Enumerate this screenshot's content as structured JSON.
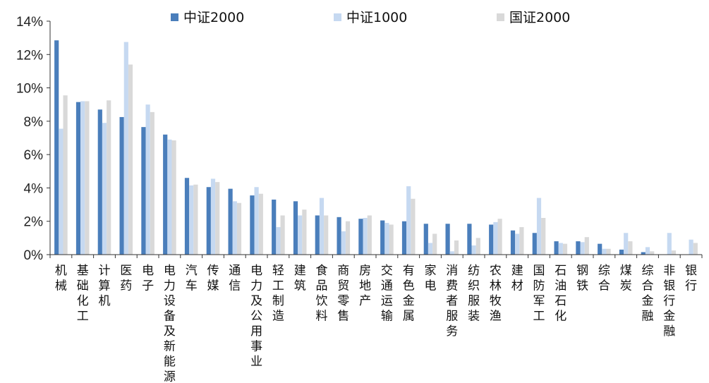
{
  "chart_data": {
    "type": "bar",
    "categories": [
      "机械",
      "基础化工",
      "计算机",
      "医药",
      "电子",
      "电力设备及新能源",
      "汽车",
      "传媒",
      "通信",
      "电力及公用事业",
      "轻工制造",
      "建筑",
      "食品饮料",
      "商贸零售",
      "房地产",
      "交通运输",
      "有色金属",
      "家电",
      "消费者服务",
      "纺织服装",
      "农林牧渔",
      "建材",
      "国防军工",
      "石油石化",
      "钢铁",
      "综合",
      "煤炭",
      "综合金融",
      "非银行金融",
      "银行"
    ],
    "series": [
      {
        "name": "中证2000",
        "color": "#4a7ebb",
        "values": [
          12.85,
          9.15,
          8.7,
          8.25,
          7.65,
          7.2,
          4.6,
          4.05,
          3.95,
          3.55,
          3.3,
          3.2,
          2.35,
          2.25,
          2.15,
          2.05,
          2.0,
          1.85,
          1.85,
          1.85,
          1.8,
          1.45,
          1.3,
          0.8,
          0.8,
          0.65,
          0.3,
          0.15,
          0.0,
          0.0
        ]
      },
      {
        "name": "中证1000",
        "color": "#c6d9f1",
        "values": [
          7.55,
          9.2,
          7.9,
          12.75,
          9.0,
          6.9,
          4.15,
          4.55,
          3.2,
          4.05,
          1.65,
          2.35,
          3.4,
          1.4,
          2.2,
          1.9,
          4.1,
          0.7,
          0.2,
          0.55,
          1.95,
          1.25,
          3.4,
          0.7,
          0.75,
          0.35,
          1.3,
          0.45,
          1.3,
          0.9
        ]
      },
      {
        "name": "国证2000",
        "color": "#d9d9d9",
        "values": [
          9.55,
          9.2,
          9.25,
          11.4,
          8.55,
          6.85,
          4.2,
          4.35,
          3.1,
          3.65,
          2.35,
          2.7,
          2.35,
          2.0,
          2.35,
          1.8,
          3.35,
          1.25,
          0.85,
          1.0,
          2.15,
          1.65,
          2.2,
          0.65,
          1.05,
          0.35,
          0.8,
          0.2,
          0.25,
          0.7
        ]
      }
    ],
    "ylim": [
      0,
      14
    ],
    "yticks": [
      0,
      2,
      4,
      6,
      8,
      10,
      12,
      14
    ],
    "ytick_labels": [
      "0%",
      "2%",
      "4%",
      "6%",
      "8%",
      "10%",
      "12%",
      "14%"
    ],
    "legend_position": "top",
    "grid": false
  }
}
